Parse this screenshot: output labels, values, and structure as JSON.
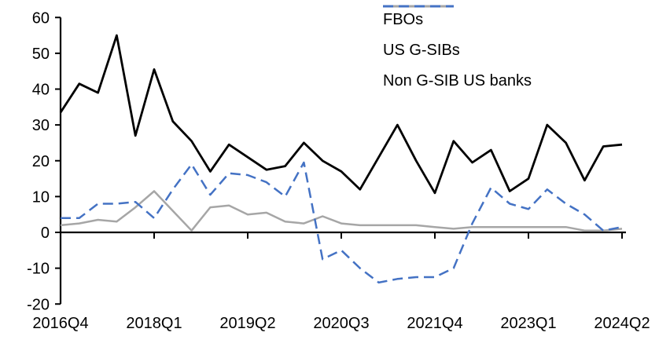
{
  "chart_data": {
    "type": "line",
    "categories": [
      "2016Q4",
      "2017Q1",
      "2017Q2",
      "2017Q3",
      "2017Q4",
      "2018Q1",
      "2018Q2",
      "2018Q3",
      "2018Q4",
      "2019Q1",
      "2019Q2",
      "2019Q3",
      "2019Q4",
      "2020Q1",
      "2020Q2",
      "2020Q3",
      "2020Q4",
      "2021Q1",
      "2021Q2",
      "2021Q3",
      "2021Q4",
      "2022Q1",
      "2022Q2",
      "2022Q3",
      "2022Q4",
      "2023Q1",
      "2023Q2",
      "2023Q3",
      "2023Q4",
      "2024Q1",
      "2024Q2"
    ],
    "x_tick_labels": [
      "2016Q4",
      "2018Q1",
      "2019Q2",
      "2020Q3",
      "2021Q4",
      "2023Q1",
      "2024Q2"
    ],
    "x_tick_indices": [
      0,
      5,
      10,
      15,
      20,
      25,
      30
    ],
    "y_ticks": [
      -20,
      -10,
      0,
      10,
      20,
      30,
      40,
      50,
      60
    ],
    "ylim": [
      -20,
      60
    ],
    "title": "",
    "xlabel": "",
    "ylabel": "",
    "grid": "off",
    "legend_position": "top-right",
    "series": [
      {
        "name": "FBOs",
        "color": "#000000",
        "style": "solid",
        "values": [
          33.5,
          41.5,
          39,
          55,
          27,
          45.5,
          31,
          25.5,
          17,
          24.5,
          21,
          17.5,
          18.5,
          25,
          20,
          17,
          12,
          21,
          30,
          20,
          11,
          25.5,
          19.5,
          23,
          11.5,
          15,
          30,
          25,
          14.5,
          24,
          24.5
        ]
      },
      {
        "name": "US G-SIBs",
        "color": "#A6A6A6",
        "style": "solid",
        "values": [
          2,
          2.5,
          3.5,
          3,
          7,
          11.5,
          6,
          0.5,
          7,
          7.5,
          5,
          5.5,
          3,
          2.5,
          4.5,
          2.5,
          2,
          2,
          2,
          2,
          1.5,
          1,
          1.5,
          1.5,
          1.5,
          1.5,
          1.5,
          1.5,
          0.5,
          0.5,
          1
        ]
      },
      {
        "name": "Non G-SIB US banks",
        "color": "#4472C4",
        "style": "dashed",
        "values": [
          4,
          4,
          8,
          8,
          8.5,
          4,
          12,
          19,
          10.5,
          16.5,
          16,
          14,
          10,
          19.5,
          -7.5,
          -5,
          -10,
          -14,
          -13,
          -12.5,
          -12.5,
          -10,
          2.5,
          12.5,
          8,
          6.5,
          12,
          8,
          5,
          0.5,
          1.5
        ]
      }
    ]
  }
}
